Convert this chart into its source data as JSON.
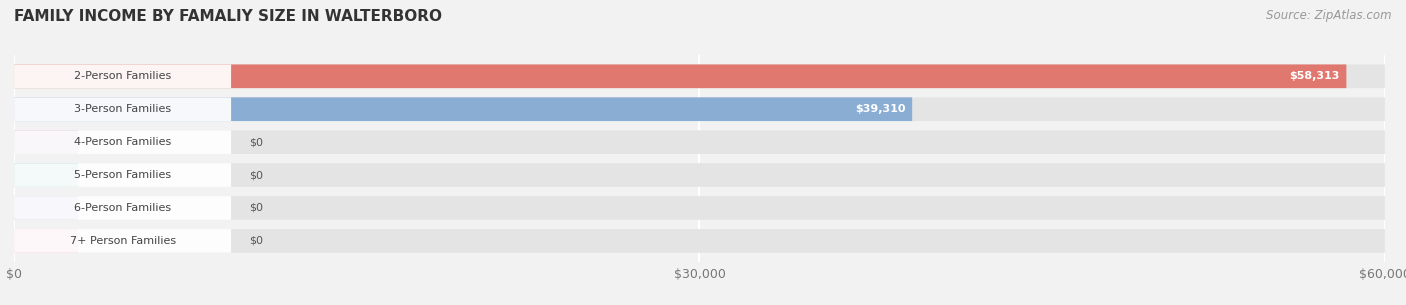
{
  "title": "FAMILY INCOME BY FAMALIY SIZE IN WALTERBORO",
  "source": "Source: ZipAtlas.com",
  "categories": [
    "2-Person Families",
    "3-Person Families",
    "4-Person Families",
    "5-Person Families",
    "6-Person Families",
    "7+ Person Families"
  ],
  "values": [
    58313,
    39310,
    0,
    0,
    0,
    0
  ],
  "bar_colors": [
    "#E07870",
    "#8AADD4",
    "#C4A0C4",
    "#6DBFB8",
    "#A8A8D8",
    "#F0A0B8"
  ],
  "xlim": [
    0,
    60000
  ],
  "xticks": [
    0,
    30000,
    60000
  ],
  "xticklabels": [
    "$0",
    "$30,000",
    "$60,000"
  ],
  "background_color": "#f2f2f2",
  "bar_bg_color": "#e4e4e4",
  "title_fontsize": 11,
  "source_fontsize": 8.5,
  "label_fontsize": 8,
  "value_fontsize": 8,
  "bar_height": 0.72,
  "zero_stub_value": 2800
}
